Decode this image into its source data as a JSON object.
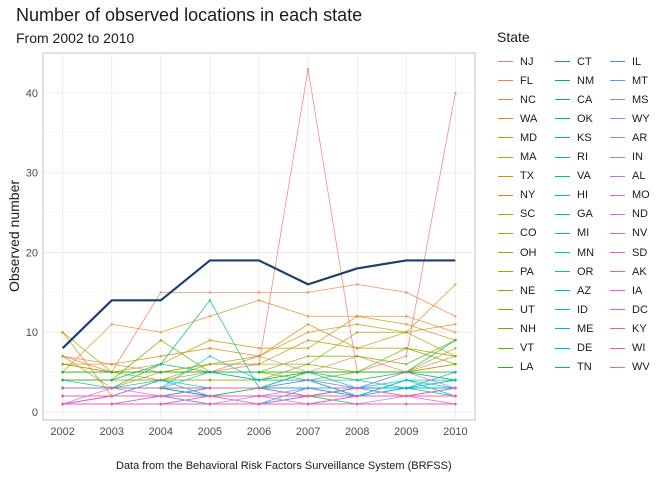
{
  "chart_data": {
    "type": "line",
    "title": "Number of observed locations in each state",
    "subtitle": "From 2002 to 2010",
    "caption": "Data from the Behavioral Risk Factors Surveillance System (BRFSS)",
    "xlabel": "",
    "ylabel": "Observed number",
    "x": [
      2002,
      2003,
      2004,
      2005,
      2006,
      2007,
      2008,
      2009,
      2010
    ],
    "xlim": [
      2001.6,
      2010.4
    ],
    "ylim": [
      -1,
      45
    ],
    "yticks": [
      0,
      10,
      20,
      30,
      40
    ],
    "grid": true,
    "legend": {
      "title": "State",
      "placement": "right",
      "columns": 3
    },
    "highlight": {
      "values": [
        8,
        14,
        14,
        19,
        19,
        16,
        18,
        19,
        19
      ],
      "color": "#1a3f73"
    },
    "series": [
      {
        "name": "NJ",
        "color": "#F8766D",
        "values": [
          7,
          5,
          5,
          5,
          6,
          43,
          5,
          7,
          40
        ]
      },
      {
        "name": "FL",
        "color": "#F37B59",
        "values": [
          7,
          6,
          5,
          5,
          7,
          5,
          7,
          5,
          7
        ]
      },
      {
        "name": "NC",
        "color": "#ED8141",
        "values": [
          6,
          5,
          15,
          15,
          15,
          15,
          16,
          15,
          12
        ]
      },
      {
        "name": "WA",
        "color": "#E7861B",
        "values": [
          5,
          11,
          10,
          12,
          14,
          12,
          12,
          12,
          10
        ]
      },
      {
        "name": "MD",
        "color": "#E08B00",
        "values": [
          6,
          6,
          7,
          8,
          7,
          11,
          8,
          10,
          16
        ]
      },
      {
        "name": "MA",
        "color": "#D89000",
        "values": [
          5,
          5,
          6,
          9,
          8,
          8,
          12,
          11,
          9
        ]
      },
      {
        "name": "TX",
        "color": "#CF9400",
        "values": [
          10,
          2,
          4,
          6,
          7,
          10,
          11,
          10,
          11
        ]
      },
      {
        "name": "NY",
        "color": "#C59900",
        "values": [
          5,
          5,
          5,
          5,
          5,
          5,
          5,
          5,
          6
        ]
      },
      {
        "name": "SC",
        "color": "#BB9D00",
        "values": [
          7,
          3,
          5,
          6,
          6,
          9,
          8,
          8,
          7
        ]
      },
      {
        "name": "CO",
        "color": "#AFA100",
        "values": [
          4,
          4,
          4,
          5,
          5,
          5,
          5,
          5,
          5
        ]
      },
      {
        "name": "OH",
        "color": "#A3A500",
        "values": [
          4,
          4,
          4,
          4,
          4,
          5,
          5,
          5,
          8
        ]
      },
      {
        "name": "PA",
        "color": "#96A900",
        "values": [
          10,
          5,
          5,
          6,
          6,
          6,
          10,
          10,
          7
        ]
      },
      {
        "name": "NE",
        "color": "#87AC00",
        "values": [
          5,
          5,
          4,
          4,
          4,
          6,
          5,
          5,
          6
        ]
      },
      {
        "name": "UT",
        "color": "#77AF00",
        "values": [
          6,
          5,
          5,
          5,
          5,
          7,
          7,
          6,
          9
        ]
      },
      {
        "name": "NH",
        "color": "#64B200",
        "values": [
          4,
          4,
          9,
          5,
          5,
          4,
          5,
          8,
          6
        ]
      },
      {
        "name": "VT",
        "color": "#4DB400",
        "values": [
          3,
          3,
          3,
          2,
          3,
          3,
          3,
          3,
          3
        ]
      },
      {
        "name": "LA",
        "color": "#27B600",
        "values": [
          3,
          3,
          3,
          3,
          3,
          5,
          5,
          5,
          4
        ]
      },
      {
        "name": "CT",
        "color": "#00B816",
        "values": [
          5,
          5,
          5,
          5,
          4,
          5,
          4,
          5,
          5
        ]
      },
      {
        "name": "NM",
        "color": "#00BA38",
        "values": [
          4,
          4,
          6,
          5,
          5,
          5,
          5,
          5,
          9
        ]
      },
      {
        "name": "CA",
        "color": "#00BB4F",
        "values": [
          1,
          1,
          1,
          1,
          1,
          2,
          1,
          1,
          1
        ]
      },
      {
        "name": "OK",
        "color": "#00BD62",
        "values": [
          3,
          3,
          3,
          2,
          3,
          3,
          3,
          3,
          3
        ]
      },
      {
        "name": "KS",
        "color": "#00BE73",
        "values": [
          3,
          3,
          6,
          14,
          3,
          4,
          2,
          4,
          4
        ]
      },
      {
        "name": "RI",
        "color": "#00BF83",
        "values": [
          2,
          2,
          2,
          2,
          2,
          2,
          3,
          3,
          2
        ]
      },
      {
        "name": "VA",
        "color": "#00C092",
        "values": [
          4,
          3,
          3,
          3,
          3,
          5,
          3,
          5,
          4
        ]
      },
      {
        "name": "HI",
        "color": "#00C0A0",
        "values": [
          3,
          3,
          3,
          3,
          3,
          3,
          3,
          3,
          4
        ]
      },
      {
        "name": "GA",
        "color": "#00C0AD",
        "values": [
          3,
          3,
          4,
          3,
          3,
          4,
          4,
          3,
          4
        ]
      },
      {
        "name": "MI",
        "color": "#00BFBA",
        "values": [
          3,
          3,
          3,
          7,
          4,
          4,
          3,
          4,
          3
        ]
      },
      {
        "name": "MN",
        "color": "#00BDC6",
        "values": [
          2,
          2,
          2,
          3,
          3,
          3,
          2,
          3,
          3
        ]
      },
      {
        "name": "OR",
        "color": "#00BBD1",
        "values": [
          3,
          3,
          3,
          5,
          4,
          4,
          2,
          4,
          2
        ]
      },
      {
        "name": "AZ",
        "color": "#00B8DC",
        "values": [
          2,
          2,
          2,
          3,
          3,
          2,
          2,
          3,
          3
        ]
      },
      {
        "name": "ID",
        "color": "#00B4E6",
        "values": [
          1,
          1,
          2,
          2,
          2,
          2,
          2,
          2,
          2
        ]
      },
      {
        "name": "ME",
        "color": "#00AFEF",
        "values": [
          1,
          2,
          2,
          1,
          1,
          3,
          2,
          2,
          3
        ]
      },
      {
        "name": "DE",
        "color": "#00A9F7",
        "values": [
          3,
          3,
          3,
          2,
          2,
          2,
          2,
          2,
          2
        ]
      },
      {
        "name": "TN",
        "color": "#00A3FF",
        "values": [
          2,
          2,
          2,
          2,
          2,
          2,
          3,
          3,
          5
        ]
      },
      {
        "name": "IL",
        "color": "#2B9CFF",
        "values": [
          2,
          2,
          4,
          2,
          2,
          2,
          2,
          2,
          2
        ]
      },
      {
        "name": "MT",
        "color": "#5D95FF",
        "values": [
          1,
          1,
          1,
          1,
          1,
          1,
          2,
          2,
          2
        ]
      },
      {
        "name": "MS",
        "color": "#7A8EFF",
        "values": [
          1,
          1,
          1,
          2,
          1,
          2,
          2,
          2,
          2
        ]
      },
      {
        "name": "WY",
        "color": "#9087FF",
        "values": [
          1,
          1,
          1,
          1,
          1,
          1,
          1,
          2,
          2
        ]
      },
      {
        "name": "AR",
        "color": "#A47FFF",
        "values": [
          1,
          2,
          2,
          1,
          2,
          2,
          2,
          2,
          2
        ]
      },
      {
        "name": "IN",
        "color": "#B477FF",
        "values": [
          2,
          2,
          2,
          2,
          2,
          1,
          2,
          2,
          2
        ]
      },
      {
        "name": "AL",
        "color": "#C370FF",
        "values": [
          1,
          1,
          1,
          2,
          2,
          3,
          3,
          2,
          3
        ]
      },
      {
        "name": "MO",
        "color": "#D06AFF",
        "values": [
          1,
          3,
          2,
          3,
          3,
          4,
          3,
          5,
          3
        ]
      },
      {
        "name": "ND",
        "color": "#DB63FF",
        "values": [
          1,
          1,
          1,
          1,
          1,
          2,
          2,
          2,
          2
        ]
      },
      {
        "name": "NV",
        "color": "#E55EF3",
        "values": [
          1,
          1,
          2,
          2,
          1,
          1,
          2,
          2,
          1
        ]
      },
      {
        "name": "SD",
        "color": "#ED58E6",
        "values": [
          2,
          2,
          2,
          2,
          2,
          2,
          2,
          2,
          2
        ]
      },
      {
        "name": "AK",
        "color": "#F455D8",
        "values": [
          1,
          2,
          2,
          2,
          2,
          2,
          2,
          2,
          2
        ]
      },
      {
        "name": "IA",
        "color": "#F953C9",
        "values": [
          1,
          1,
          1,
          1,
          1,
          1,
          1,
          1,
          1
        ]
      },
      {
        "name": "DC",
        "color": "#FC54B9",
        "values": [
          2,
          2,
          2,
          2,
          2,
          2,
          2,
          2,
          2
        ]
      },
      {
        "name": "KY",
        "color": "#FE56A8",
        "values": [
          3,
          3,
          3,
          3,
          3,
          2,
          3,
          2,
          3
        ]
      },
      {
        "name": "WI",
        "color": "#FF5A96",
        "values": [
          1,
          1,
          1,
          1,
          1,
          1,
          1,
          1,
          1
        ]
      },
      {
        "name": "WV",
        "color": "#FF6484",
        "values": [
          2,
          2,
          2,
          2,
          2,
          2,
          2,
          2,
          2
        ]
      }
    ]
  }
}
